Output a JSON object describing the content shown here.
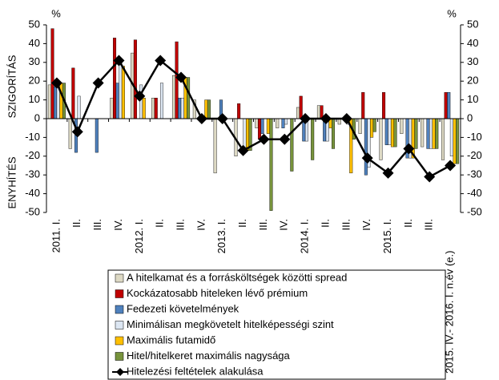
{
  "chart_data": {
    "type": "bar",
    "categories": [
      "2011. I.",
      "II.",
      "III.",
      "IV.",
      "2012. I.",
      "II.",
      "III.",
      "IV.",
      "2013. I.",
      "II.",
      "III.",
      "IV.",
      "2014. I.",
      "II.",
      "III.",
      "IV.",
      "2015. I.",
      "II.",
      "III.",
      "2015. IV.- 2016. I. n.év (e.)"
    ],
    "ylabel_top": "SZIGORÍTÁS",
    "ylabel_bottom": "ENYHÍTÉS",
    "yunit": "%",
    "y2unit": "%",
    "ylim": [
      -50,
      50
    ],
    "yticks": [
      -50,
      -40,
      -30,
      -20,
      -10,
      0,
      10,
      20,
      30,
      40,
      50
    ],
    "y2lim": [
      -50,
      50
    ],
    "y2ticks": [
      -50,
      -40,
      -30,
      -20,
      -10,
      0,
      10,
      20,
      30,
      40,
      50
    ],
    "series": [
      {
        "name": "A hitelkamat és a forrásköltségek közötti spread",
        "color": "#ddd9c4",
        "values": [
          18,
          -16,
          0,
          11,
          35,
          11,
          23,
          10,
          -29,
          -20,
          -5,
          -5,
          6,
          7,
          -3,
          -8,
          -22,
          -8,
          -15,
          -22
        ]
      },
      {
        "name": "Kockázatosabb hiteleken lévő prémium",
        "color": "#c00000",
        "values": [
          48,
          27,
          0,
          43,
          42,
          11,
          41,
          0,
          0,
          8,
          -11,
          0,
          12,
          7,
          0,
          14,
          14,
          0,
          0,
          14
        ]
      },
      {
        "name": "Fedezeti követelmények",
        "color": "#4f81bd",
        "values": [
          17,
          -18,
          -18,
          19,
          0,
          0,
          11,
          0,
          10,
          0,
          -8,
          -5,
          -12,
          -12,
          0,
          -30,
          -14,
          -21,
          -16,
          14
        ]
      },
      {
        "name": "Minimálisan megkövetelt hitelképességi szint",
        "color": "#dce6f2",
        "values": [
          19,
          12,
          0,
          30,
          18,
          19,
          11,
          0,
          0,
          -18,
          0,
          -3,
          -12,
          -12,
          -3,
          -26,
          -14,
          -21,
          -16,
          -20
        ]
      },
      {
        "name": "Maximális futamidő",
        "color": "#ffc000",
        "values": [
          19,
          0,
          0,
          28,
          11,
          0,
          22,
          10,
          0,
          -17,
          -8,
          0,
          0,
          -5,
          -29,
          -10,
          -15,
          -21,
          -16,
          -24
        ]
      },
      {
        "name": "Hitel/hitelkeret maximális nagysága",
        "color": "#77933c",
        "values": [
          19,
          0,
          0,
          0,
          0,
          0,
          22,
          10,
          0,
          -17,
          -49,
          -28,
          -22,
          -16,
          -11,
          -7,
          -15,
          -16,
          -16,
          -24
        ]
      },
      {
        "name": "Hitelezési feltételek alakulása",
        "color": "#000000",
        "type": "line",
        "values": [
          19,
          -7,
          19,
          31,
          12,
          31,
          22,
          0,
          0,
          -17,
          -11,
          -11,
          0,
          0,
          0,
          -21,
          -29,
          -16,
          -31,
          -25
        ]
      }
    ]
  }
}
